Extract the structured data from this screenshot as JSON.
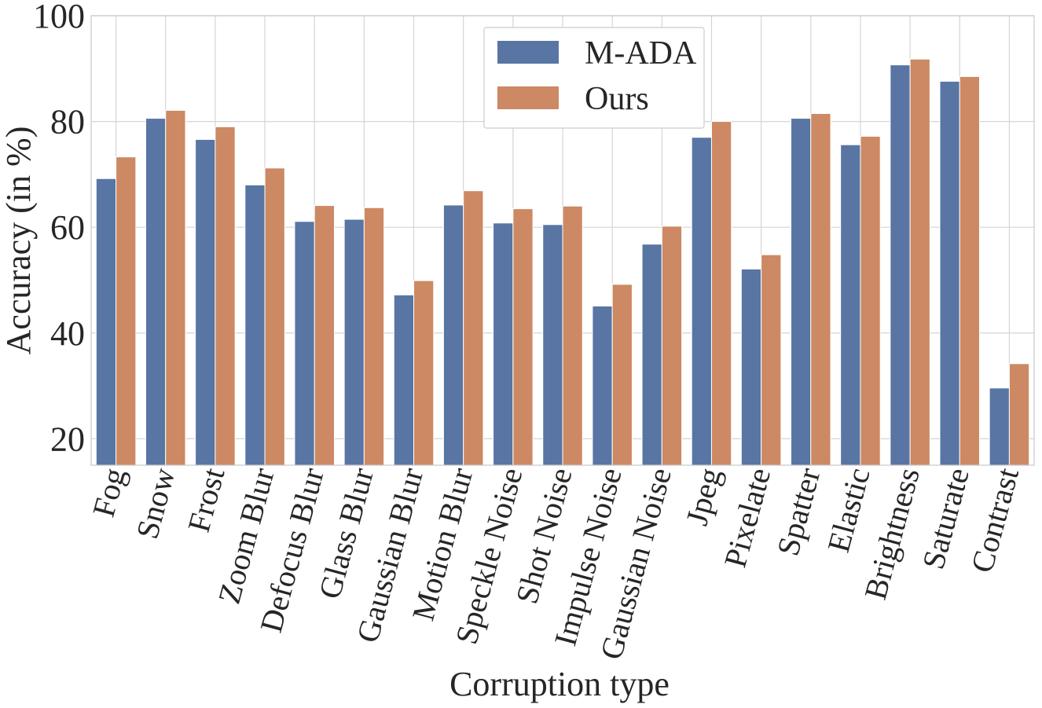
{
  "chart_data": {
    "type": "bar",
    "title": "",
    "xlabel": "Corruption type",
    "ylabel": "Accuracy (in %)",
    "ylim": [
      15,
      100
    ],
    "yticks": [
      20,
      40,
      60,
      80,
      100
    ],
    "grid": true,
    "legend_position": "top-center",
    "categories": [
      "Fog",
      "Snow",
      "Frost",
      "Zoom Blur",
      "Defocus Blur",
      "Glass Blur",
      "Gaussian Blur",
      "Motion Blur",
      "Speckle Noise",
      "Shot Noise",
      "Impulse Noise",
      "Gaussian Noise",
      "Jpeg",
      "Pixelate",
      "Spatter",
      "Elastic",
      "Brightness",
      "Saturate",
      "Contrast"
    ],
    "series": [
      {
        "name": "M-ADA",
        "color": "#5875a4",
        "values": [
          69.2,
          80.6,
          76.6,
          68.0,
          61.1,
          61.5,
          47.2,
          64.2,
          60.8,
          60.5,
          45.1,
          56.8,
          77.0,
          52.1,
          80.6,
          75.6,
          90.7,
          87.6,
          29.6
        ]
      },
      {
        "name": "Ours",
        "color": "#cc8963",
        "values": [
          73.3,
          82.1,
          79.0,
          71.2,
          64.1,
          63.7,
          49.9,
          66.9,
          63.5,
          64.0,
          49.2,
          60.2,
          80.0,
          54.8,
          81.5,
          77.2,
          91.8,
          88.5,
          34.2
        ]
      }
    ]
  }
}
